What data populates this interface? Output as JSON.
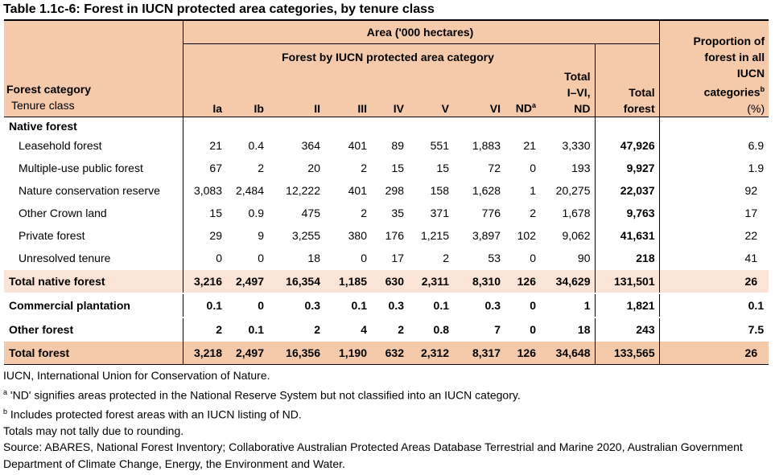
{
  "title": "Table 1.1c-6: Forest in IUCN protected area categories, by tenure class",
  "header": {
    "area": "Area ('000 hectares)",
    "forest_by_iucn": "Forest by IUCN protected area category",
    "forest_category": "Forest category",
    "tenure_class": "Tenure class",
    "columns": [
      "Ia",
      "Ib",
      "II",
      "III",
      "IV",
      "V",
      "VI",
      "ND"
    ],
    "nd_sup": "a",
    "total_iucn": [
      "Total",
      "I–VI,",
      "ND"
    ],
    "total_forest": [
      "Total",
      "forest"
    ],
    "proportion": [
      "Proportion of",
      "forest in all",
      "IUCN",
      "categories"
    ],
    "proportion_sup": "b",
    "proportion_unit": "(%)"
  },
  "group_native": "Native forest",
  "rows": [
    {
      "label": "Leasehold forest",
      "values": [
        "21",
        "0.4",
        "364",
        "401",
        "89",
        "551",
        "1,883",
        "21",
        "3,330"
      ],
      "total": "47,926",
      "pct": "6.9"
    },
    {
      "label": "Multiple-use public forest",
      "values": [
        "67",
        "2",
        "20",
        "2",
        "15",
        "15",
        "72",
        "0",
        "193"
      ],
      "total": "9,927",
      "pct": "1.9"
    },
    {
      "label": "Nature conservation reserve",
      "values": [
        "3,083",
        "2,484",
        "12,222",
        "401",
        "298",
        "158",
        "1,628",
        "1",
        "20,275"
      ],
      "total": "22,037",
      "pct": "92"
    },
    {
      "label": "Other Crown land",
      "values": [
        "15",
        "0.9",
        "475",
        "2",
        "35",
        "371",
        "776",
        "2",
        "1,678"
      ],
      "total": "9,763",
      "pct": "17"
    },
    {
      "label": "Private forest",
      "values": [
        "29",
        "9",
        "3,255",
        "380",
        "176",
        "1,215",
        "3,897",
        "102",
        "9,062"
      ],
      "total": "41,631",
      "pct": "22"
    },
    {
      "label": "Unresolved tenure",
      "values": [
        "0",
        "0",
        "18",
        "0",
        "17",
        "2",
        "53",
        "0",
        "90"
      ],
      "total": "218",
      "pct": "41"
    }
  ],
  "total_native": {
    "label": "Total native forest",
    "values": [
      "3,216",
      "2,497",
      "16,354",
      "1,185",
      "630",
      "2,311",
      "8,310",
      "126",
      "34,629"
    ],
    "total": "131,501",
    "pct": "26"
  },
  "commercial": {
    "label": "Commercial plantation",
    "values": [
      "0.1",
      "0",
      "0.3",
      "0.1",
      "0.3",
      "0.1",
      "0.3",
      "0",
      "1"
    ],
    "total": "1,821",
    "pct": "0.1"
  },
  "other": {
    "label": "Other forest",
    "values": [
      "2",
      "0.1",
      "2",
      "4",
      "2",
      "0.8",
      "7",
      "0",
      "18"
    ],
    "total": "243",
    "pct": "7.5"
  },
  "total_forest": {
    "label": "Total forest",
    "values": [
      "3,218",
      "2,497",
      "16,356",
      "1,190",
      "632",
      "2,312",
      "8,317",
      "126",
      "34,648"
    ],
    "total": "133,565",
    "pct": "26"
  },
  "notes": {
    "n1": "IUCN, International Union for Conservation of Nature.",
    "n2_sup": "a",
    "n2": " 'ND' signifies areas protected in the National Reserve System but not classified into an IUCN category.",
    "n3_sup": "b",
    "n3": " Includes protected forest areas with an IUCN listing of ND.",
    "n4": "Totals may not tally due to rounding.",
    "n5": "Source: ABARES, National Forest Inventory; Collaborative Australian Protected Areas Database Terrestrial and Marine 2020, Australian Government Department of Climate Change, Energy, the Environment and Water."
  },
  "colors": {
    "header": "#f5caab",
    "total_native": "#fbe4d5",
    "total_forest": "#f5caab"
  }
}
